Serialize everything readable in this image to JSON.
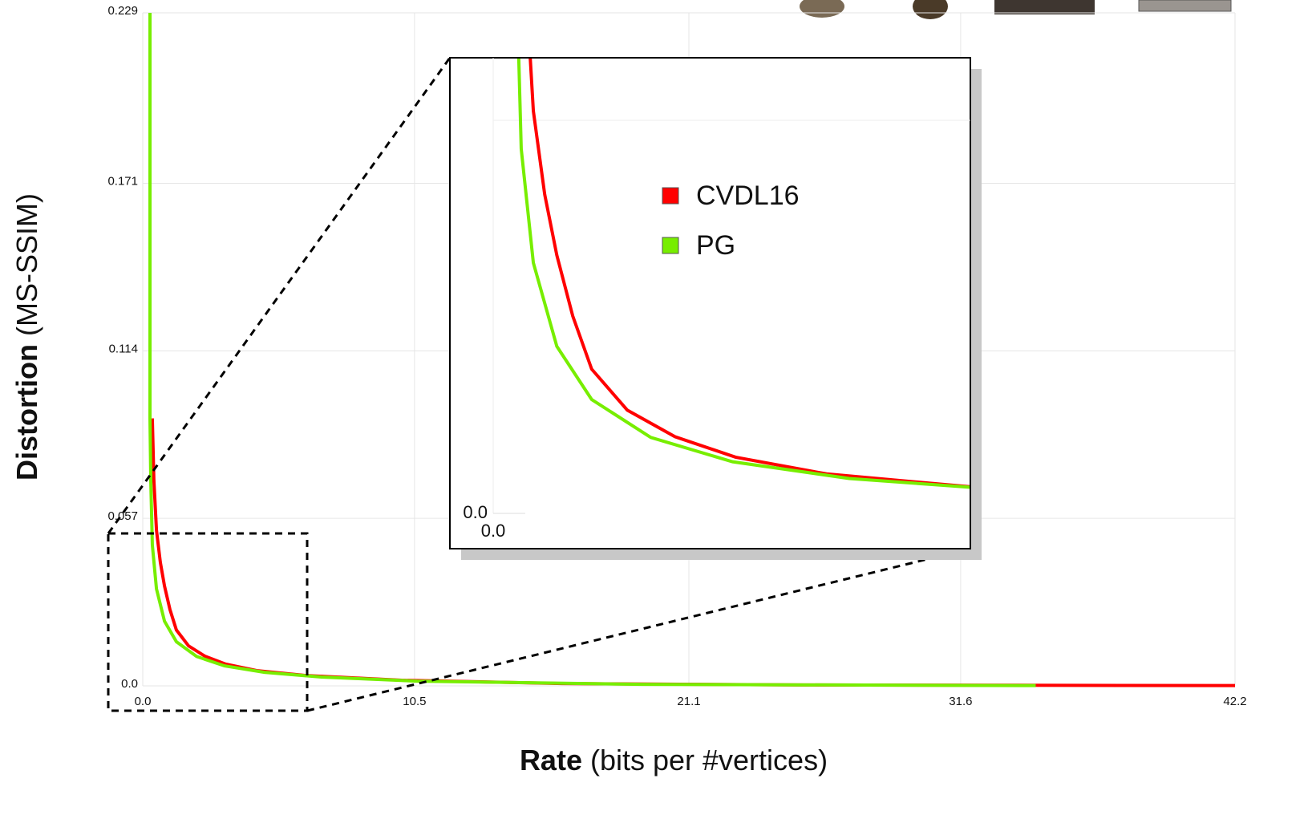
{
  "chart_data": {
    "type": "line",
    "xlabel": {
      "main": "Rate",
      "unit": "(bits per #vertices)"
    },
    "ylabel": {
      "main": "Distortion",
      "unit": "(MS-SSIM)"
    },
    "xlim": [
      0,
      42.2
    ],
    "xticks": [
      {
        "value": 0,
        "label": "0.0"
      },
      10.5,
      21.1,
      31.6,
      42.2
    ],
    "ylim": [
      0,
      0.229
    ],
    "yticks": [
      {
        "value": 0,
        "label": "0.0"
      },
      0.057,
      0.114,
      0.171,
      0.229
    ],
    "grid": true,
    "series": [
      {
        "name": "CVDL16",
        "color": "#ff0000",
        "x": [
          0.37,
          0.43,
          0.53,
          0.68,
          0.84,
          1.05,
          1.3,
          1.77,
          2.4,
          3.2,
          4.4,
          6.3,
          10.0,
          16.2,
          25.5,
          42.2
        ],
        "values": [
          0.091,
          0.07,
          0.053,
          0.042,
          0.034,
          0.026,
          0.019,
          0.0136,
          0.0101,
          0.0074,
          0.0052,
          0.0035,
          0.0019,
          0.0008,
          0.0003,
          0.0001
        ]
      },
      {
        "name": "PG",
        "color": "#77ee00",
        "x": [
          0.28,
          0.28,
          0.31,
          0.37,
          0.53,
          0.84,
          1.3,
          2.08,
          3.16,
          4.7,
          6.9,
          10.6,
          19.3,
          34.5
        ],
        "values": [
          0.229,
          0.091,
          0.07,
          0.048,
          0.033,
          0.022,
          0.015,
          0.01,
          0.0068,
          0.0046,
          0.003,
          0.0016,
          0.0005,
          0.0001
        ]
      }
    ],
    "inset": {
      "xlim": [
        0,
        6.3
      ],
      "ylim": [
        0,
        0.06
      ],
      "xticks": [
        {
          "value": 0,
          "label": "0.0"
        }
      ],
      "yticks": [
        {
          "value": 0,
          "label": "0.0"
        }
      ]
    }
  }
}
